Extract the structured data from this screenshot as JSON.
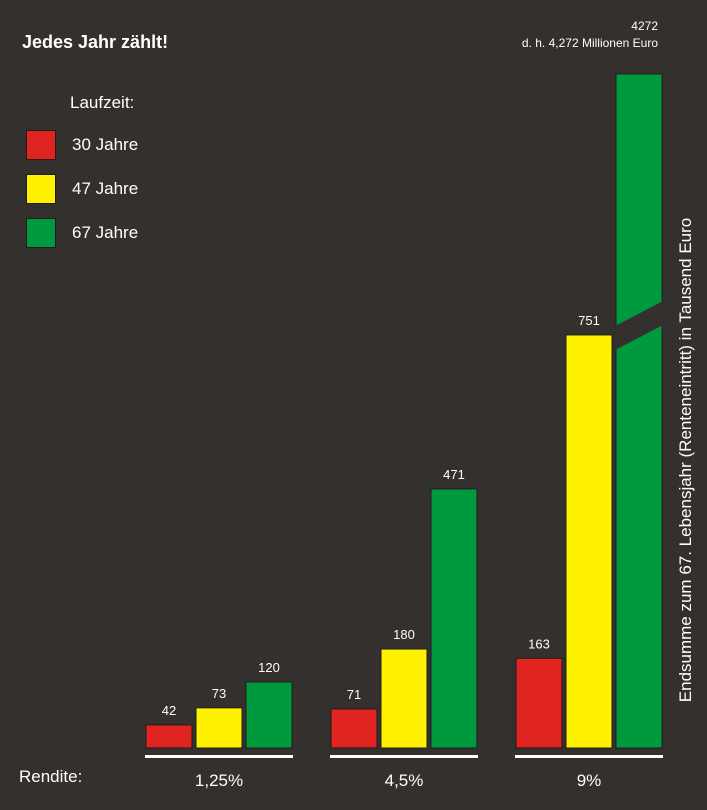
{
  "title": "Jedes Jahr zählt!",
  "legend": {
    "title": "Laufzeit:",
    "items": [
      {
        "label": "30 Jahre",
        "color": "#e0241f"
      },
      {
        "label": "47 Jahre",
        "color": "#fff200"
      },
      {
        "label": "67 Jahre",
        "color": "#009a3e"
      }
    ]
  },
  "note": {
    "value": "4272",
    "text": "d. h. 4,272 Millionen Euro"
  },
  "xaxis_prefix": "Rendite:",
  "chart_data": {
    "type": "bar",
    "title": "Jedes Jahr zählt!",
    "xlabel": "Rendite:",
    "ylabel": "Endsumme zum 67. Lebensjahr (Renteneintritt) in Tausend Euro",
    "categories": [
      "1,25%",
      "4,5%",
      "9%"
    ],
    "series": [
      {
        "name": "30 Jahre",
        "color": "#e0241f",
        "values": [
          42,
          71,
          163
        ]
      },
      {
        "name": "47 Jahre",
        "color": "#fff200",
        "values": [
          73,
          180,
          751
        ]
      },
      {
        "name": "67 Jahre",
        "color": "#009a3e",
        "values": [
          120,
          471,
          4272
        ]
      }
    ],
    "axis_break": true,
    "legend_position": "top-left",
    "grid": false
  }
}
